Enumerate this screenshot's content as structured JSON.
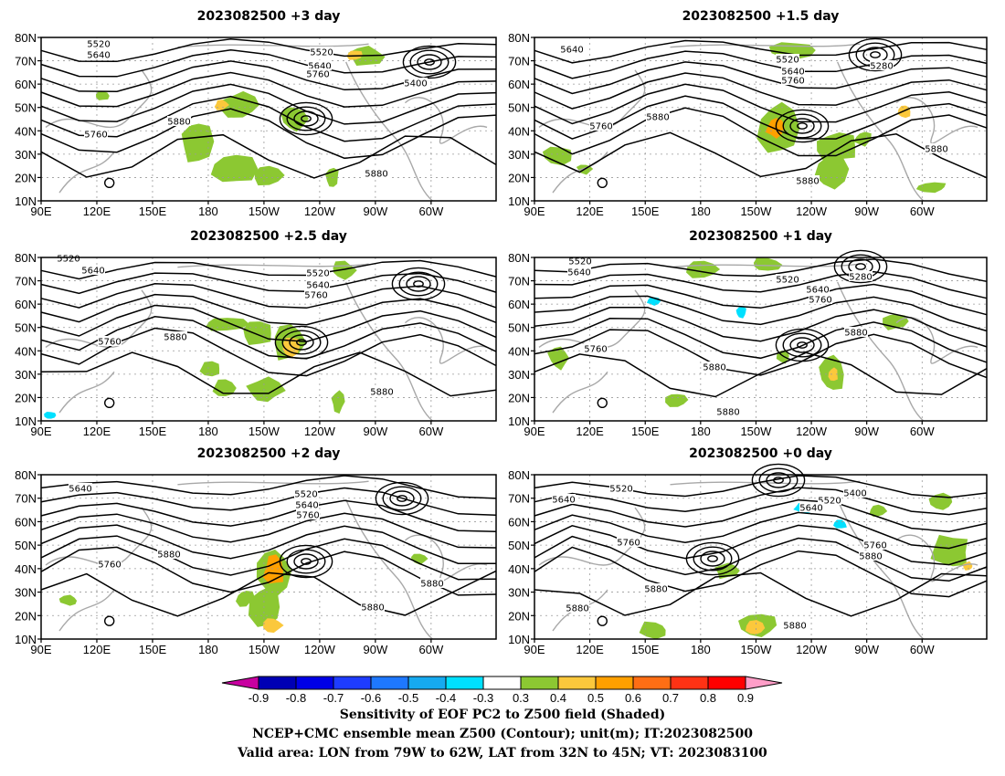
{
  "panels": [
    {
      "title": "2023082500 +3 day"
    },
    {
      "title": "2023082500 +1.5 day"
    },
    {
      "title": "2023082500 +2.5 day"
    },
    {
      "title": "2023082500 +1 day"
    },
    {
      "title": "2023082500 +2 day"
    },
    {
      "title": "2023082500 +0 day"
    }
  ],
  "map_axes": {
    "lat_ticks": [
      "80N",
      "70N",
      "60N",
      "50N",
      "40N",
      "30N",
      "20N",
      "10N"
    ],
    "lon_ticks": [
      "90E",
      "120E",
      "150E",
      "180",
      "150W",
      "120W",
      "90W",
      "60W"
    ],
    "lat_range": [
      10,
      80
    ],
    "lon_range_east": [
      90,
      335
    ]
  },
  "contour_labels": [
    "5280",
    "5400",
    "5520",
    "5640",
    "5760",
    "5880"
  ],
  "colorbar": {
    "ticks": [
      "-0.9",
      "-0.8",
      "-0.7",
      "-0.6",
      "-0.5",
      "-0.4",
      "-0.3",
      "0.3",
      "0.4",
      "0.5",
      "0.6",
      "0.7",
      "0.8",
      "0.9"
    ],
    "colors": [
      "#0000b4",
      "#0000e6",
      "#1e3cff",
      "#1e78ff",
      "#16aaf0",
      "#00e0ff",
      "#ffffff",
      "#8cc832",
      "#fbc83c",
      "#ffa000",
      "#ff6e14",
      "#ff3214",
      "#ff0000"
    ],
    "low_end_color": "#c800a0",
    "high_end_color": "#ff9ec8"
  },
  "caption": {
    "line1": "Sensitivity of EOF PC2 to Z500 field (Shaded)",
    "line2": "NCEP+CMC ensemble mean Z500 (Contour); unit(m); IT:2023082500",
    "line3": "Valid area: LON from 79W to 62W, LAT from 32N to 45N; VT: 2023083100"
  }
}
